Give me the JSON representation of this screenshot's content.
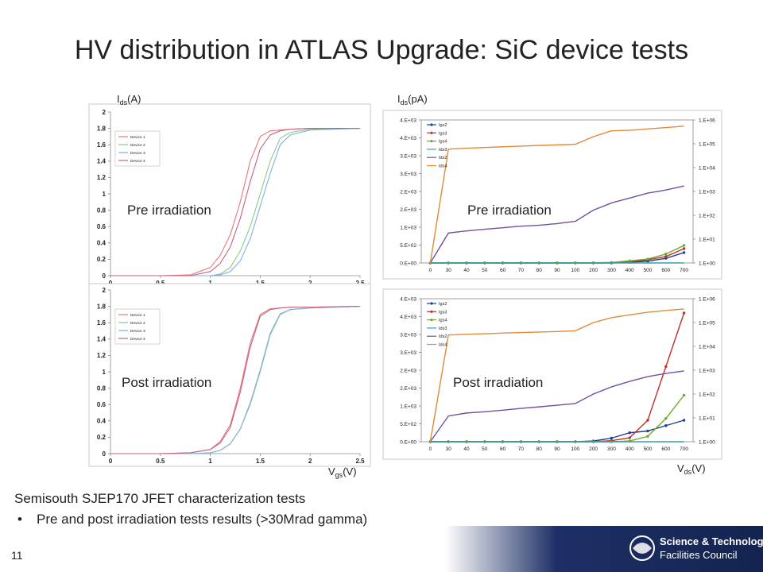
{
  "slide": {
    "title": "HV distribution in ATLAS Upgrade: SiC device tests",
    "subtitle": "Semisouth SJEP170 JFET characterization tests",
    "bullets": [
      "Pre and post irradiation tests results (>30Mrad gamma)"
    ],
    "page_number": 11,
    "logo": [
      "Science & Technology",
      "Facilities Council"
    ]
  },
  "chart_data": [
    {
      "type": "line",
      "annotation": "Pre irradiation",
      "y_label": {
        "symbol": "I",
        "subscript": "ds",
        "unit": "(A)"
      },
      "x": [
        0,
        0.5,
        0.8,
        1.0,
        1.1,
        1.2,
        1.3,
        1.4,
        1.5,
        1.6,
        1.7,
        1.8,
        2.0,
        2.5
      ],
      "xlim": [
        0,
        2.5
      ],
      "xticks": [
        0,
        0.5,
        1,
        1.5,
        2,
        2.5
      ],
      "ylim": [
        0,
        2
      ],
      "yticks": [
        0,
        0.2,
        0.4,
        0.6,
        0.8,
        1,
        1.2,
        1.4,
        1.6,
        1.8,
        2
      ],
      "grid": false,
      "legend": "upper left",
      "series": [
        {
          "name": "Device 1",
          "color": "#e8797a",
          "values": [
            0,
            0,
            0.01,
            0.1,
            0.25,
            0.5,
            0.9,
            1.4,
            1.7,
            1.77,
            1.78,
            1.79,
            1.8,
            1.8
          ]
        },
        {
          "name": "Device 2",
          "color": "#8cc88c",
          "values": [
            0,
            0,
            0,
            0,
            0.02,
            0.1,
            0.3,
            0.6,
            1.0,
            1.4,
            1.68,
            1.75,
            1.79,
            1.8
          ]
        },
        {
          "name": "Device 3",
          "color": "#7fb0e0",
          "values": [
            0,
            0,
            0,
            0,
            0.01,
            0.05,
            0.18,
            0.45,
            0.85,
            1.25,
            1.6,
            1.72,
            1.78,
            1.8
          ]
        },
        {
          "name": "Device 4",
          "color": "#c86080",
          "values": [
            0,
            0,
            0,
            0.05,
            0.15,
            0.35,
            0.7,
            1.15,
            1.55,
            1.72,
            1.77,
            1.79,
            1.8,
            1.8
          ]
        }
      ]
    },
    {
      "type": "line",
      "annotation": "Post irradiation",
      "x_label": {
        "symbol": "V",
        "subscript": "gs",
        "unit": "(V)"
      },
      "x": [
        0,
        0.5,
        0.8,
        1.0,
        1.1,
        1.2,
        1.3,
        1.4,
        1.5,
        1.6,
        1.7,
        1.8,
        2.0,
        2.5
      ],
      "xlim": [
        0,
        2.5
      ],
      "xticks": [
        0,
        0.5,
        1,
        1.5,
        2,
        2.5
      ],
      "ylim": [
        0,
        2
      ],
      "yticks": [
        0,
        0.2,
        0.4,
        0.6,
        0.8,
        1,
        1.2,
        1.4,
        1.6,
        1.8,
        2
      ],
      "grid": false,
      "legend": "upper left",
      "series": [
        {
          "name": "Device 1",
          "color": "#e8797a",
          "values": [
            0,
            0,
            0.01,
            0.05,
            0.15,
            0.35,
            0.8,
            1.35,
            1.7,
            1.77,
            1.78,
            1.79,
            1.79,
            1.8
          ]
        },
        {
          "name": "Device 2",
          "color": "#8cc88c",
          "values": [
            0,
            0,
            0,
            0.01,
            0.04,
            0.12,
            0.3,
            0.6,
            1.0,
            1.45,
            1.7,
            1.76,
            1.78,
            1.8
          ]
        },
        {
          "name": "Device 3",
          "color": "#7fb0e0",
          "values": [
            0,
            0,
            0,
            0.01,
            0.04,
            0.12,
            0.3,
            0.62,
            1.02,
            1.47,
            1.71,
            1.76,
            1.78,
            1.8
          ]
        },
        {
          "name": "Device 4",
          "color": "#c86080",
          "values": [
            0,
            0,
            0.01,
            0.05,
            0.13,
            0.32,
            0.75,
            1.3,
            1.68,
            1.76,
            1.78,
            1.79,
            1.79,
            1.8
          ]
        }
      ]
    },
    {
      "type": "line",
      "annotation": "Pre irradiation",
      "y_label": {
        "symbol": "I",
        "subscript": "ds",
        "unit": "(pA)"
      },
      "categories": [
        "0",
        "30",
        "40",
        "50",
        "60",
        "70",
        "80",
        "90",
        "100",
        "200",
        "300",
        "400",
        "500",
        "600",
        "700"
      ],
      "ylim": [
        0,
        4000
      ],
      "yticks": [
        {
          "value": 0,
          "label": "0.E+00"
        },
        {
          "value": 500,
          "label": "5.E+02"
        },
        {
          "value": 1000,
          "label": "1.E+03"
        },
        {
          "value": 1500,
          "label": "2.E+03"
        },
        {
          "value": 2000,
          "label": "2.E+03"
        },
        {
          "value": 2500,
          "label": "3.E+03"
        },
        {
          "value": 3000,
          "label": "3.E+03"
        },
        {
          "value": 3500,
          "label": "4.E+03"
        },
        {
          "value": 4000,
          "label": "4.E+03"
        }
      ],
      "y2lim": [
        1,
        1000000
      ],
      "y2_log": true,
      "y2ticks": [
        {
          "value": 1,
          "label": "1.E+00"
        },
        {
          "value": 10,
          "label": "1.E+01"
        },
        {
          "value": 100,
          "label": "1.E+02"
        },
        {
          "value": 1000,
          "label": "1.E+03"
        },
        {
          "value": 10000,
          "label": "1.E+04"
        },
        {
          "value": 100000,
          "label": "1.E+05"
        },
        {
          "value": 1000000,
          "label": "1.E+06"
        }
      ],
      "grid": false,
      "legend": "upper left",
      "series": [
        {
          "name": "Igs2",
          "color": "#1f3f8f",
          "markers": true,
          "values": [
            0,
            0,
            0,
            0,
            0,
            0,
            0,
            0,
            0,
            0,
            0,
            20,
            50,
            130,
            290
          ]
        },
        {
          "name": "Igs3",
          "color": "#c0302a",
          "markers": true,
          "values": [
            0,
            0,
            0,
            0,
            0,
            0,
            0,
            0,
            0,
            0,
            10,
            30,
            90,
            180,
            400
          ]
        },
        {
          "name": "Igs4",
          "color": "#70a830",
          "markers": true,
          "values": [
            0,
            0,
            0,
            0,
            0,
            0,
            0,
            0,
            0,
            0,
            15,
            60,
            110,
            250,
            490
          ]
        },
        {
          "name": "Ids3",
          "color": "#30a0a8",
          "axis": "y2",
          "values": [
            1,
            1,
            1,
            1,
            1,
            1,
            1,
            1,
            1,
            1,
            1,
            1,
            1,
            1,
            1
          ]
        },
        {
          "name": "Ids2",
          "color": "#7050a0",
          "axis": "y2",
          "values": [
            1,
            18,
            22,
            26,
            30,
            35,
            38,
            45,
            56,
            165,
            330,
            530,
            850,
            1150,
            1700
          ]
        },
        {
          "name": "Ids4",
          "color": "#e08a3c",
          "axis": "y2",
          "values": [
            1,
            60000,
            65000,
            70000,
            75000,
            80000,
            85000,
            90000,
            95000,
            200000,
            350000,
            370000,
            420000,
            480000,
            550000
          ]
        }
      ]
    },
    {
      "type": "line",
      "annotation": "Post irradiation",
      "x_label": {
        "symbol": "V",
        "subscript": "ds",
        "unit": "(V)"
      },
      "categories": [
        "0",
        "30",
        "40",
        "50",
        "60",
        "70",
        "80",
        "90",
        "100",
        "200",
        "300",
        "400",
        "500",
        "600",
        "700"
      ],
      "ylim": [
        0,
        4000
      ],
      "yticks": [
        {
          "value": 0,
          "label": "0.E+00"
        },
        {
          "value": 500,
          "label": "5.E+02"
        },
        {
          "value": 1000,
          "label": "1.E+03"
        },
        {
          "value": 1500,
          "label": "2.E+03"
        },
        {
          "value": 2000,
          "label": "2.E+03"
        },
        {
          "value": 2500,
          "label": "3.E+03"
        },
        {
          "value": 3000,
          "label": "3.E+03"
        },
        {
          "value": 3500,
          "label": "4.E+03"
        },
        {
          "value": 4000,
          "label": "4.E+03"
        }
      ],
      "y2lim": [
        1,
        1000000
      ],
      "y2_log": true,
      "y2ticks": [
        {
          "value": 1,
          "label": "1.E+00"
        },
        {
          "value": 10,
          "label": "1.E+01"
        },
        {
          "value": 100,
          "label": "1.E+02"
        },
        {
          "value": 1000,
          "label": "1.E+03"
        },
        {
          "value": 10000,
          "label": "1.E+04"
        },
        {
          "value": 100000,
          "label": "1.E+05"
        },
        {
          "value": 1000000,
          "label": "1.E+06"
        }
      ],
      "grid": false,
      "legend": "upper left",
      "series": [
        {
          "name": "Igs2",
          "color": "#1f3f8f",
          "markers": true,
          "values": [
            0,
            0,
            0,
            0,
            0,
            0,
            0,
            0,
            0,
            20,
            100,
            250,
            300,
            450,
            600
          ]
        },
        {
          "name": "Igs3",
          "color": "#c0302a",
          "markers": true,
          "values": [
            0,
            0,
            0,
            0,
            0,
            0,
            0,
            0,
            0,
            0,
            30,
            110,
            600,
            2100,
            3600
          ]
        },
        {
          "name": "Igs4",
          "color": "#70a830",
          "markers": true,
          "values": [
            0,
            0,
            0,
            0,
            0,
            0,
            0,
            0,
            0,
            0,
            0,
            20,
            150,
            650,
            1300
          ]
        },
        {
          "name": "Ids3",
          "color": "#30a0a8",
          "axis": "y2",
          "values": [
            1,
            1,
            1,
            1,
            1,
            1,
            1,
            1,
            1,
            1,
            1,
            1,
            1,
            1,
            1
          ]
        },
        {
          "name": "Ids2",
          "color": "#7050a0",
          "axis": "y2",
          "values": [
            1,
            12,
            16,
            18,
            21,
            25,
            29,
            34,
            40,
            100,
            200,
            340,
            540,
            730,
            930
          ]
        },
        {
          "name": "Ids4",
          "color": "#e08a3c",
          "axis": "y2",
          "values": [
            1,
            30000,
            32000,
            34000,
            36000,
            38000,
            40000,
            42000,
            45000,
            100000,
            160000,
            210000,
            270000,
            320000,
            370000
          ]
        }
      ]
    }
  ]
}
